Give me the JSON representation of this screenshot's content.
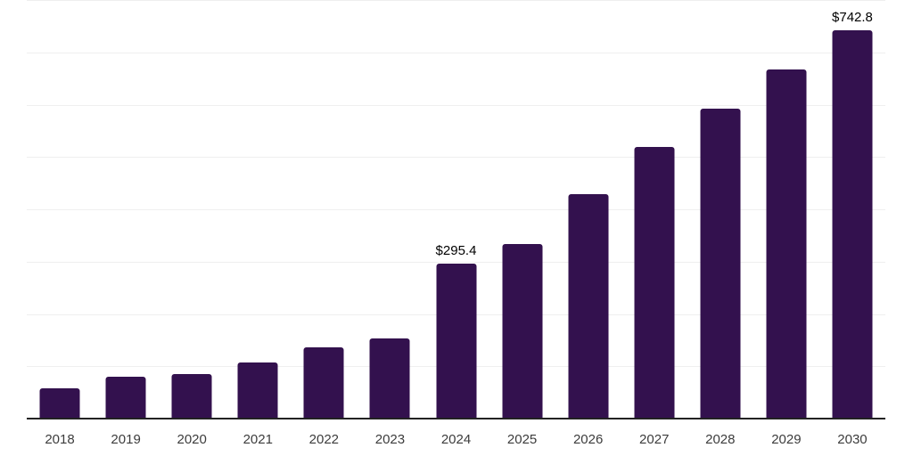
{
  "chart_data": {
    "type": "bar",
    "title": "",
    "xlabel": "",
    "ylabel": "",
    "categories": [
      "2018",
      "2019",
      "2020",
      "2021",
      "2022",
      "2023",
      "2024",
      "2025",
      "2026",
      "2027",
      "2028",
      "2029",
      "2030"
    ],
    "values": [
      58.5,
      80.0,
      85.0,
      106.5,
      136.0,
      153.0,
      295.4,
      334.0,
      428.5,
      520.0,
      592.0,
      666.5,
      742.8
    ],
    "value_labels": {
      "2024": "$295.4",
      "2030": "$742.8"
    },
    "ylim": [
      0,
      800
    ],
    "gridline_step": 100,
    "grid": "horizontal",
    "legend": "none",
    "colors": {
      "bar": "#33114E",
      "gridline": "#EFEFEF",
      "axis_line": "#222222",
      "tick_label": "#3C3C3C",
      "value_label": "#000000",
      "background": "#FFFFFF"
    }
  }
}
